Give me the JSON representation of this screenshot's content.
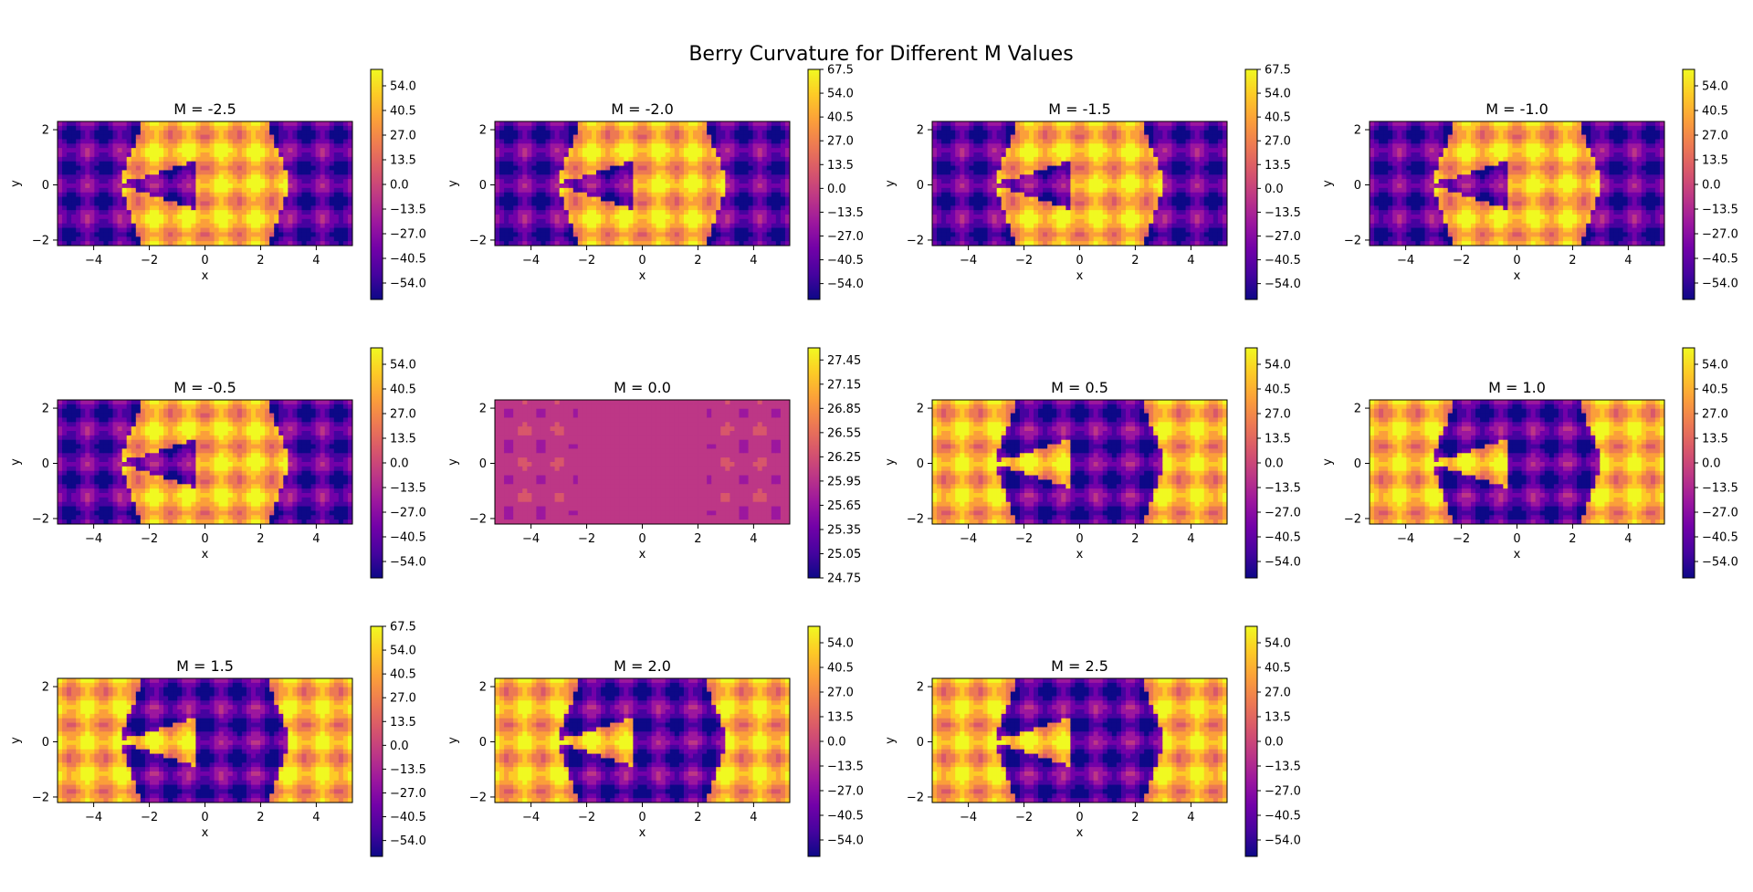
{
  "figure": {
    "title": "Berry Curvature for Different M Values"
  },
  "colormap": [
    "#0d0887",
    "#46039f",
    "#7201a8",
    "#9c179e",
    "#bd3786",
    "#d8576b",
    "#ed7953",
    "#fb9f3a",
    "#fdca26",
    "#f0f921"
  ],
  "chart_data": [
    {
      "type": "heatmap",
      "title": "M = -2.5",
      "M": -2.5,
      "xlabel": "x",
      "ylabel": "y",
      "xlim": [
        -5.3,
        5.3
      ],
      "ylim": [
        -2.2,
        2.3
      ],
      "xticks": [
        -4,
        -2,
        0,
        2,
        4
      ],
      "yticks": [
        -2,
        0,
        2
      ],
      "colorbar": {
        "range": [
          -63,
          63
        ],
        "ticks": [
          "54.0",
          "40.5",
          "27.0",
          "13.5",
          "0.0",
          "−13.5",
          "−27.0",
          "−40.5",
          "−54.0"
        ]
      }
    },
    {
      "type": "heatmap",
      "title": "M = -2.0",
      "M": -2.0,
      "xlabel": "x",
      "ylabel": "y",
      "xlim": [
        -5.3,
        5.3
      ],
      "ylim": [
        -2.2,
        2.3
      ],
      "xticks": [
        -4,
        -2,
        0,
        2,
        4
      ],
      "yticks": [
        -2,
        0,
        2
      ],
      "colorbar": {
        "range": [
          -63,
          67.5
        ],
        "ticks": [
          "67.5",
          "54.0",
          "40.5",
          "27.0",
          "13.5",
          "0.0",
          "−13.5",
          "−27.0",
          "−40.5",
          "−54.0"
        ]
      }
    },
    {
      "type": "heatmap",
      "title": "M = -1.5",
      "M": -1.5,
      "xlabel": "x",
      "ylabel": "y",
      "xlim": [
        -5.3,
        5.3
      ],
      "ylim": [
        -2.2,
        2.3
      ],
      "xticks": [
        -4,
        -2,
        0,
        2,
        4
      ],
      "yticks": [
        -2,
        0,
        2
      ],
      "colorbar": {
        "range": [
          -63,
          67.5
        ],
        "ticks": [
          "67.5",
          "54.0",
          "40.5",
          "27.0",
          "13.5",
          "0.0",
          "−13.5",
          "−27.0",
          "−40.5",
          "−54.0"
        ]
      }
    },
    {
      "type": "heatmap",
      "title": "M = -1.0",
      "M": -1.0,
      "xlabel": "x",
      "ylabel": "y",
      "xlim": [
        -5.3,
        5.3
      ],
      "ylim": [
        -2.2,
        2.3
      ],
      "xticks": [
        -4,
        -2,
        0,
        2,
        4
      ],
      "yticks": [
        -2,
        0,
        2
      ],
      "colorbar": {
        "range": [
          -63,
          63
        ],
        "ticks": [
          "54.0",
          "40.5",
          "27.0",
          "13.5",
          "0.0",
          "−13.5",
          "−27.0",
          "−40.5",
          "−54.0"
        ]
      }
    },
    {
      "type": "heatmap",
      "title": "M = -0.5",
      "M": -0.5,
      "xlabel": "x",
      "ylabel": "y",
      "xlim": [
        -5.3,
        5.3
      ],
      "ylim": [
        -2.2,
        2.3
      ],
      "xticks": [
        -4,
        -2,
        0,
        2,
        4
      ],
      "yticks": [
        -2,
        0,
        2
      ],
      "colorbar": {
        "range": [
          -63,
          63
        ],
        "ticks": [
          "54.0",
          "40.5",
          "27.0",
          "13.5",
          "0.0",
          "−13.5",
          "−27.0",
          "−40.5",
          "−54.0"
        ]
      }
    },
    {
      "type": "heatmap",
      "title": "M = 0.0",
      "M": 0.0,
      "xlabel": "x",
      "ylabel": "y",
      "xlim": [
        -5.3,
        5.3
      ],
      "ylim": [
        -2.2,
        2.3
      ],
      "xticks": [
        -4,
        -2,
        0,
        2,
        4
      ],
      "yticks": [
        -2,
        0,
        2
      ],
      "colorbar": {
        "range": [
          24.75,
          27.6
        ],
        "ticks": [
          "27.45",
          "27.15",
          "26.85",
          "26.55",
          "26.25",
          "25.95",
          "25.65",
          "25.35",
          "25.05",
          "24.75"
        ]
      }
    },
    {
      "type": "heatmap",
      "title": "M = 0.5",
      "M": 0.5,
      "xlabel": "x",
      "ylabel": "y",
      "xlim": [
        -5.3,
        5.3
      ],
      "ylim": [
        -2.2,
        2.3
      ],
      "xticks": [
        -4,
        -2,
        0,
        2,
        4
      ],
      "yticks": [
        -2,
        0,
        2
      ],
      "colorbar": {
        "range": [
          -63,
          63
        ],
        "ticks": [
          "54.0",
          "40.5",
          "27.0",
          "13.5",
          "0.0",
          "−13.5",
          "−27.0",
          "−40.5",
          "−54.0"
        ]
      }
    },
    {
      "type": "heatmap",
      "title": "M = 1.0",
      "M": 1.0,
      "xlabel": "x",
      "ylabel": "y",
      "xlim": [
        -5.3,
        5.3
      ],
      "ylim": [
        -2.2,
        2.3
      ],
      "xticks": [
        -4,
        -2,
        0,
        2,
        4
      ],
      "yticks": [
        -2,
        0,
        2
      ],
      "colorbar": {
        "range": [
          -63,
          63
        ],
        "ticks": [
          "54.0",
          "40.5",
          "27.0",
          "13.5",
          "0.0",
          "−13.5",
          "−27.0",
          "−40.5",
          "−54.0"
        ]
      }
    },
    {
      "type": "heatmap",
      "title": "M = 1.5",
      "M": 1.5,
      "xlabel": "x",
      "ylabel": "y",
      "xlim": [
        -5.3,
        5.3
      ],
      "ylim": [
        -2.2,
        2.3
      ],
      "xticks": [
        -4,
        -2,
        0,
        2,
        4
      ],
      "yticks": [
        -2,
        0,
        2
      ],
      "colorbar": {
        "range": [
          -63,
          67.5
        ],
        "ticks": [
          "67.5",
          "54.0",
          "40.5",
          "27.0",
          "13.5",
          "0.0",
          "−13.5",
          "−27.0",
          "−40.5",
          "−54.0"
        ]
      }
    },
    {
      "type": "heatmap",
      "title": "M = 2.0",
      "M": 2.0,
      "xlabel": "x",
      "ylabel": "y",
      "xlim": [
        -5.3,
        5.3
      ],
      "ylim": [
        -2.2,
        2.3
      ],
      "xticks": [
        -4,
        -2,
        0,
        2,
        4
      ],
      "yticks": [
        -2,
        0,
        2
      ],
      "colorbar": {
        "range": [
          -63,
          63
        ],
        "ticks": [
          "54.0",
          "40.5",
          "27.0",
          "13.5",
          "0.0",
          "−13.5",
          "−27.0",
          "−40.5",
          "−54.0"
        ]
      }
    },
    {
      "type": "heatmap",
      "title": "M = 2.5",
      "M": 2.5,
      "xlabel": "x",
      "ylabel": "y",
      "xlim": [
        -5.3,
        5.3
      ],
      "ylim": [
        -2.2,
        2.3
      ],
      "xticks": [
        -4,
        -2,
        0,
        2,
        4
      ],
      "yticks": [
        -2,
        0,
        2
      ],
      "colorbar": {
        "range": [
          -63,
          63
        ],
        "ticks": [
          "54.0",
          "40.5",
          "27.0",
          "13.5",
          "0.0",
          "−13.5",
          "−27.0",
          "−40.5",
          "−54.0"
        ]
      }
    }
  ]
}
